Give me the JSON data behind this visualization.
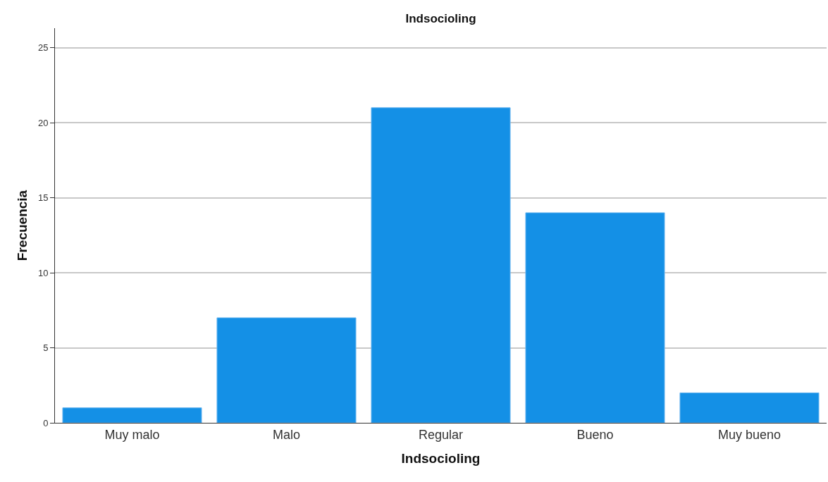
{
  "chart_data": {
    "type": "bar",
    "title": "Indsocioling",
    "xlabel": "Indsocioling",
    "ylabel": "Frecuencia",
    "categories": [
      "Muy malo",
      "Malo",
      "Regular",
      "Bueno",
      "Muy bueno"
    ],
    "values": [
      1,
      7,
      21,
      14,
      2
    ],
    "color": "#1490e6",
    "ylim": [
      0,
      26.3
    ],
    "yticks": [
      0,
      5,
      10,
      15,
      20,
      25
    ],
    "grid": "y"
  }
}
